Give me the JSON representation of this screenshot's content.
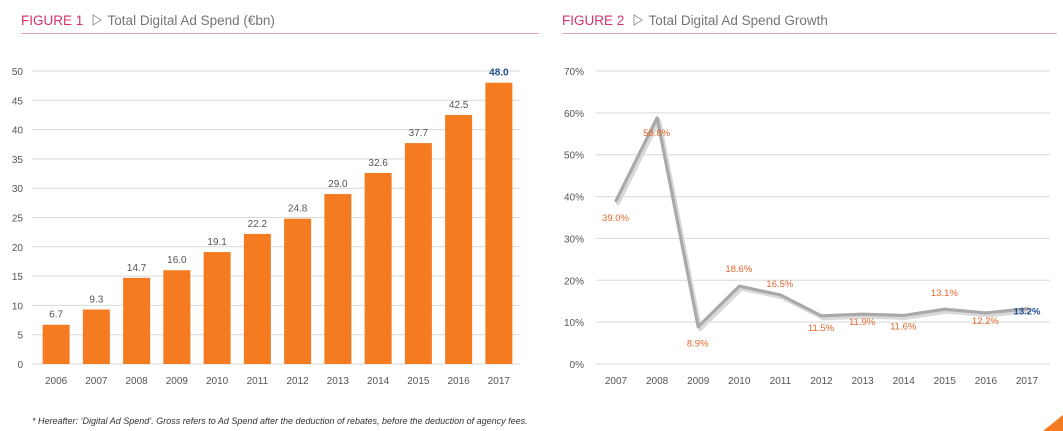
{
  "figure1": {
    "label": "FIGURE 1",
    "title": "Total Digital Ad Spend (€bn)"
  },
  "figure2": {
    "label": "FIGURE 2",
    "title": "Total Digital Ad Spend Growth"
  },
  "footnote": "* Hereafter: ‘Digital Ad Spend’. Gross refers to Ad Spend after the deduction of rebates, before the deduction of agency fees.",
  "colors": {
    "bar": "#f47b20",
    "line": "#a9a9a9",
    "label_orange": "#e5652a",
    "label_highlight": "#1f4e8c",
    "grid": "#d9d9d9",
    "axis_text": "#555555",
    "accent": "#d6336c"
  },
  "chart_data": [
    {
      "type": "bar",
      "categories": [
        "2006",
        "2007",
        "2008",
        "2009",
        "2010",
        "2011",
        "2012",
        "2013",
        "2014",
        "2015",
        "2016",
        "2017"
      ],
      "values": [
        6.7,
        9.3,
        14.7,
        16.0,
        19.1,
        22.2,
        24.8,
        29.0,
        32.6,
        37.7,
        42.5,
        48.0
      ],
      "value_labels": [
        "6.7",
        "9.3",
        "14.7",
        "16.0",
        "19.1",
        "22.2",
        "24.8",
        "29.0",
        "32.6",
        "37.7",
        "42.5",
        "48.0"
      ],
      "title": "Total Digital Ad Spend (€bn)",
      "xlabel": "",
      "ylabel": "",
      "ylim": [
        0,
        50
      ],
      "yticks": [
        0,
        5,
        10,
        15,
        20,
        25,
        30,
        35,
        40,
        45,
        50
      ],
      "ytick_labels": [
        "0",
        "5",
        "10",
        "15",
        "20",
        "25",
        "30",
        "35",
        "40",
        "45",
        "50"
      ],
      "grid": true,
      "highlight_last": true
    },
    {
      "type": "line",
      "categories": [
        "2007",
        "2008",
        "2009",
        "2010",
        "2011",
        "2012",
        "2013",
        "2014",
        "2015",
        "2016",
        "2017"
      ],
      "values": [
        39.0,
        58.8,
        8.9,
        18.6,
        16.5,
        11.5,
        11.9,
        11.6,
        13.1,
        12.2,
        13.2
      ],
      "value_labels": [
        "39.0%",
        "58.8%",
        "8.9%",
        "18.6%",
        "16.5%",
        "11.5%",
        "11.9%",
        "11.6%",
        "13.1%",
        "12.2%",
        "13.2%"
      ],
      "title": "Total Digital Ad Spend Growth",
      "xlabel": "",
      "ylabel": "",
      "ylim": [
        0,
        70
      ],
      "yticks": [
        0,
        10,
        20,
        30,
        40,
        50,
        60,
        70
      ],
      "ytick_labels": [
        "0%",
        "10%",
        "20%",
        "30%",
        "40%",
        "50%",
        "60%",
        "70%"
      ],
      "grid": true,
      "highlight_last": true
    }
  ]
}
